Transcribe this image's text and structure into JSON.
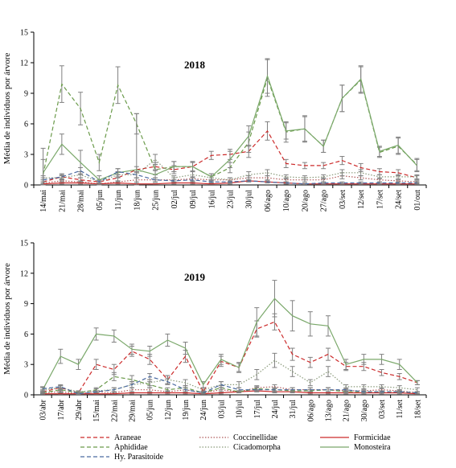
{
  "chart_data": [
    {
      "type": "line",
      "title": "2018",
      "xlabel": "",
      "ylabel": "Média de indivíduos por árvore",
      "ylim": [
        0,
        15
      ],
      "yticks": [
        0,
        3,
        6,
        9,
        12,
        15
      ],
      "categories": [
        "14/mai",
        "21/mai",
        "28/mai",
        "05/jun",
        "11/jun",
        "18/jun",
        "25/jun",
        "02/jul",
        "09/jul",
        "16/jul",
        "23/jul",
        "30/jul",
        "06/ago",
        "10/ago",
        "20/ago",
        "27/ago",
        "03/set",
        "12/set",
        "17/set",
        "24/set",
        "01/out"
      ],
      "series": [
        {
          "name": "Araneae",
          "values": [
            0.3,
            0.8,
            0.5,
            0.3,
            0.7,
            1.5,
            1.8,
            1.5,
            1.8,
            2.9,
            3.0,
            3.3,
            5.3,
            2.1,
            1.9,
            1.9,
            2.4,
            1.7,
            1.3,
            1.2,
            0.7
          ],
          "errors": [
            0.2,
            0.3,
            0.2,
            0.2,
            0.3,
            0.3,
            0.4,
            0.4,
            0.4,
            0.4,
            0.5,
            0.6,
            0.9,
            0.4,
            0.3,
            0.3,
            0.4,
            0.4,
            0.3,
            0.3,
            0.2
          ]
        },
        {
          "name": "Coccinellidae",
          "values": [
            0.2,
            0.4,
            0.3,
            0.1,
            0.3,
            0.5,
            0.5,
            0.5,
            0.6,
            0.5,
            0.5,
            0.7,
            0.7,
            0.5,
            0.5,
            0.5,
            0.9,
            0.7,
            0.5,
            0.4,
            0.3
          ],
          "errors": [
            0.1,
            0.1,
            0.1,
            0.1,
            0.1,
            0.2,
            0.2,
            0.2,
            0.2,
            0.2,
            0.2,
            0.2,
            0.2,
            0.2,
            0.2,
            0.2,
            0.3,
            0.2,
            0.2,
            0.1,
            0.1
          ]
        },
        {
          "name": "Formicidae",
          "values": [
            0.1,
            0.2,
            0.2,
            0.1,
            0.2,
            0.1,
            0.1,
            0.2,
            0.2,
            0.1,
            0.2,
            0.4,
            0.3,
            0.2,
            0.1,
            0.1,
            0.1,
            0.1,
            0.1,
            0.1,
            0.1
          ],
          "errors": [
            0.05,
            0.1,
            0.1,
            0.05,
            0.1,
            0.05,
            0.05,
            0.1,
            0.1,
            0.05,
            0.1,
            0.1,
            0.1,
            0.1,
            0.05,
            0.05,
            0.05,
            0.05,
            0.05,
            0.05,
            0.05
          ]
        },
        {
          "name": "Aphididae",
          "values": [
            1.0,
            9.9,
            7.5,
            2.2,
            9.8,
            6.0,
            1.5,
            1.8,
            1.8,
            0.8,
            1.7,
            4.2,
            10.5,
            5.2,
            5.5,
            3.8,
            8.5,
            10.3,
            3.2,
            3.8,
            2.0
          ],
          "errors": [
            1.5,
            1.8,
            1.6,
            0.8,
            1.8,
            1.0,
            0.5,
            0.5,
            0.5,
            0.3,
            0.5,
            1.0,
            1.8,
            1.0,
            1.2,
            0.6,
            1.3,
            1.3,
            0.5,
            0.8,
            0.6
          ]
        },
        {
          "name": "Cicadomorpha",
          "values": [
            0.7,
            0.7,
            1.0,
            0.3,
            1.0,
            1.0,
            2.5,
            0.7,
            1.0,
            0.7,
            0.5,
            1.0,
            1.2,
            0.8,
            0.7,
            0.8,
            1.2,
            1.2,
            0.8,
            0.8,
            0.8
          ],
          "errors": [
            0.2,
            0.2,
            0.3,
            0.1,
            0.3,
            0.3,
            0.5,
            0.2,
            0.3,
            0.2,
            0.2,
            0.3,
            0.3,
            0.2,
            0.2,
            0.2,
            0.3,
            0.3,
            0.2,
            0.2,
            0.2
          ]
        },
        {
          "name": "Monosteira",
          "values": [
            1.2,
            4.0,
            2.2,
            0.5,
            1.2,
            1.5,
            1.0,
            1.8,
            1.8,
            0.8,
            2.5,
            4.8,
            10.7,
            5.3,
            5.5,
            3.8,
            8.5,
            10.4,
            3.3,
            3.9,
            1.9
          ],
          "errors": [
            2.4,
            1.0,
            1.2,
            0.4,
            0.4,
            5.5,
            0.5,
            0.5,
            0.5,
            0.3,
            0.8,
            1.0,
            1.7,
            0.8,
            1.3,
            0.6,
            1.3,
            1.3,
            0.5,
            0.8,
            0.6
          ]
        },
        {
          "name": "Hy. Parasitoide",
          "values": [
            0.5,
            0.8,
            1.4,
            0.3,
            1.3,
            1.0,
            0.5,
            0.4,
            0.5,
            0.3,
            0.3,
            0.4,
            0.3,
            0.2,
            0.1,
            0.2,
            0.2,
            0.2,
            0.2,
            0.2,
            0.2
          ],
          "errors": [
            0.2,
            0.2,
            0.3,
            0.1,
            0.3,
            0.3,
            0.2,
            0.1,
            0.2,
            0.1,
            0.1,
            0.1,
            0.1,
            0.1,
            0.05,
            0.1,
            0.1,
            0.1,
            0.1,
            0.1,
            0.1
          ]
        }
      ]
    },
    {
      "type": "line",
      "title": "2019",
      "xlabel": "",
      "ylabel": "Média de indivíduos por árvore",
      "ylim": [
        0,
        15
      ],
      "yticks": [
        0,
        3,
        6,
        9,
        12,
        15
      ],
      "categories": [
        "03/abr",
        "17/abr",
        "29/abr",
        "15/mai",
        "22/mai",
        "29/mai",
        "05/jun",
        "12/jun",
        "19/jun",
        "24/jun",
        "03/jul",
        "10/jul",
        "17/jul",
        "24/jul",
        "31/jul",
        "06/ago",
        "13/ago",
        "21/ago",
        "30/ago",
        "03/set",
        "11/set",
        "18/set"
      ],
      "series": [
        {
          "name": "Araneae",
          "values": [
            0.3,
            0.7,
            0.2,
            3.0,
            2.5,
            4.3,
            3.5,
            1.5,
            3.8,
            0.3,
            3.3,
            2.7,
            6.5,
            7.2,
            4.0,
            3.2,
            4.0,
            2.8,
            2.8,
            2.2,
            1.8,
            1.2
          ],
          "errors": [
            0.2,
            0.2,
            0.1,
            0.5,
            0.5,
            0.5,
            0.5,
            0.4,
            0.6,
            0.1,
            0.5,
            0.4,
            0.8,
            0.8,
            0.6,
            0.5,
            0.6,
            0.4,
            0.4,
            0.3,
            0.3,
            0.2
          ]
        },
        {
          "name": "Coccinellidae",
          "values": [
            0.2,
            0.3,
            0.1,
            0.3,
            0.2,
            0.5,
            0.5,
            0.3,
            0.5,
            0.2,
            0.5,
            0.3,
            0.7,
            0.8,
            0.5,
            0.5,
            0.5,
            0.4,
            0.4,
            0.5,
            0.4,
            0.2
          ],
          "errors": [
            0.1,
            0.1,
            0.05,
            0.1,
            0.1,
            0.2,
            0.2,
            0.1,
            0.2,
            0.1,
            0.2,
            0.1,
            0.2,
            0.2,
            0.2,
            0.2,
            0.2,
            0.1,
            0.1,
            0.2,
            0.1,
            0.1
          ]
        },
        {
          "name": "Formicidae",
          "values": [
            0.1,
            0.1,
            0.1,
            0.1,
            0.1,
            0.2,
            0.2,
            0.2,
            0.2,
            0.1,
            0.2,
            0.3,
            0.4,
            0.3,
            0.3,
            0.2,
            0.2,
            0.2,
            0.2,
            0.2,
            0.2,
            0.1
          ],
          "errors": [
            0.05,
            0.05,
            0.05,
            0.05,
            0.05,
            0.1,
            0.1,
            0.1,
            0.1,
            0.05,
            0.1,
            0.1,
            0.1,
            0.1,
            0.1,
            0.1,
            0.1,
            0.1,
            0.1,
            0.1,
            0.1,
            0.05
          ]
        },
        {
          "name": "Aphididae",
          "values": [
            0.2,
            0.5,
            0.2,
            0.5,
            1.8,
            1.5,
            1.0,
            0.5,
            0.7,
            0.2,
            0.7,
            0.3,
            0.6,
            0.5,
            0.4,
            0.4,
            0.5,
            0.3,
            0.3,
            0.3,
            0.3,
            0.2
          ],
          "errors": [
            0.1,
            0.2,
            0.1,
            0.2,
            0.4,
            0.4,
            0.3,
            0.2,
            0.2,
            0.1,
            0.2,
            0.1,
            0.2,
            0.2,
            0.1,
            0.1,
            0.2,
            0.1,
            0.1,
            0.1,
            0.1,
            0.1
          ]
        },
        {
          "name": "Cicadomorpha",
          "values": [
            0.5,
            0.7,
            0.3,
            0.4,
            0.5,
            1.0,
            1.2,
            1.5,
            1.2,
            0.5,
            1.0,
            1.0,
            2.0,
            3.4,
            2.3,
            1.2,
            2.3,
            0.8,
            0.8,
            0.8,
            0.7,
            0.5
          ],
          "errors": [
            0.2,
            0.2,
            0.1,
            0.2,
            0.2,
            0.3,
            0.3,
            0.4,
            0.3,
            0.2,
            0.3,
            0.3,
            0.5,
            0.7,
            0.5,
            0.3,
            0.5,
            0.2,
            0.2,
            0.2,
            0.2,
            0.2
          ]
        },
        {
          "name": "Monosteira",
          "values": [
            0.5,
            3.8,
            3.0,
            6.0,
            5.8,
            4.5,
            4.3,
            5.4,
            4.6,
            1.0,
            3.5,
            2.7,
            7.2,
            9.5,
            7.8,
            7.0,
            6.8,
            3.0,
            3.5,
            3.5,
            3.0,
            1.2
          ],
          "errors": [
            0.3,
            0.7,
            0.5,
            0.6,
            0.6,
            0.5,
            0.5,
            0.6,
            0.6,
            0.3,
            0.5,
            0.5,
            1.4,
            1.8,
            1.5,
            1.2,
            1.0,
            0.5,
            0.5,
            0.5,
            0.5,
            0.2
          ]
        },
        {
          "name": "Hy. Parasitoide",
          "values": [
            0.6,
            0.8,
            0.1,
            0.3,
            0.5,
            1.0,
            1.8,
            1.3,
            0.5,
            0.2,
            1.0,
            0.5,
            0.5,
            0.5,
            0.5,
            0.5,
            0.5,
            0.5,
            0.3,
            0.3,
            0.3,
            0.2
          ],
          "errors": [
            0.2,
            0.2,
            0.05,
            0.1,
            0.2,
            0.3,
            0.3,
            0.3,
            0.2,
            0.1,
            0.3,
            0.2,
            0.2,
            0.2,
            0.2,
            0.2,
            0.2,
            0.2,
            0.1,
            0.1,
            0.1,
            0.1
          ]
        }
      ]
    }
  ],
  "legend": {
    "items": [
      {
        "name": "Araneae",
        "color": "#cc2a2a",
        "dash": "5,3"
      },
      {
        "name": "Coccinellidae",
        "color": "#b05a5a",
        "dash": "1.5,2"
      },
      {
        "name": "Formicidae",
        "color": "#cc2a2a",
        "dash": ""
      },
      {
        "name": "Aphididae",
        "color": "#6a9a4a",
        "dash": "5,3"
      },
      {
        "name": "Cicadomorpha",
        "color": "#8a9a7a",
        "dash": "1.5,2"
      },
      {
        "name": "Monosteira",
        "color": "#7aa86a",
        "dash": ""
      },
      {
        "name": "Hy. Parasitoide",
        "color": "#4a6aa0",
        "dash": "5,3"
      }
    ]
  },
  "colors": {
    "axis": "#000000",
    "errorbar": "#808080"
  }
}
